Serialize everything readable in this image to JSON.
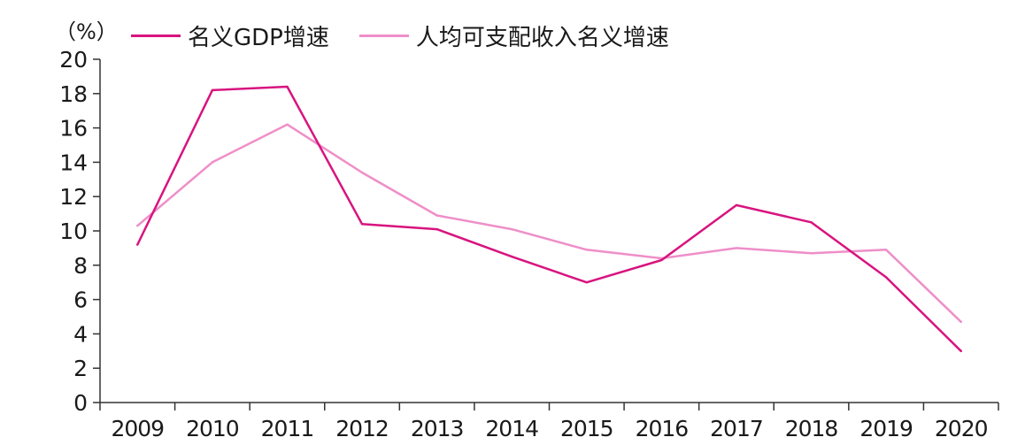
{
  "chart_data": {
    "type": "line",
    "unit_label": "（%）",
    "categories": [
      "2009",
      "2010",
      "2011",
      "2012",
      "2013",
      "2014",
      "2015",
      "2016",
      "2017",
      "2018",
      "2019",
      "2020"
    ],
    "ylim": [
      0,
      20
    ],
    "yticks": [
      0,
      2,
      4,
      6,
      8,
      10,
      12,
      14,
      16,
      18,
      20
    ],
    "grid": false,
    "legend_position": "top-left",
    "series": [
      {
        "name": "名义GDP增速",
        "color": "#d8147f",
        "values": [
          9.2,
          18.2,
          18.4,
          10.4,
          10.1,
          8.5,
          7.0,
          8.3,
          11.5,
          10.5,
          7.3,
          3.0
        ]
      },
      {
        "name": "人均可支配收入名义增速",
        "color": "#ee8fc8",
        "values": [
          10.3,
          14.0,
          16.2,
          13.4,
          10.9,
          10.1,
          8.9,
          8.4,
          9.0,
          8.7,
          8.9,
          4.7
        ]
      }
    ]
  }
}
